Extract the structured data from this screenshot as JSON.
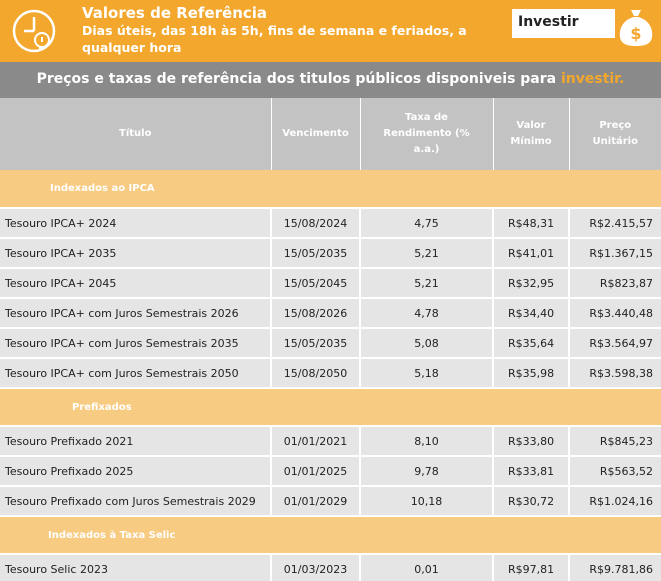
{
  "header": {
    "title": "Valores de Referência",
    "subtitle": "Dias úteis, das 18h às 5h, fins de semana e feriados, a qualquer hora",
    "invest_button": "Investir",
    "icons": [
      "clock-lightbulb-icon",
      "money-bag-icon"
    ],
    "colors": {
      "accent": "#f3a82d",
      "banner": "#8a8a8a",
      "header_cells": "#c3c3c3",
      "group_row": "#f8cb82"
    }
  },
  "banner": {
    "text": "Preços e taxas de referência dos titulos públicos disponiveis para ",
    "accent_text": "investir."
  },
  "table": {
    "columns": [
      "Título",
      "Vencimento",
      "Taxa de Rendimento (% a.a.)",
      "Valor Mínimo",
      "Preço Unitário"
    ],
    "groups": [
      {
        "label": "Indexados ao IPCA",
        "rows": [
          {
            "titulo": "Tesouro IPCA+ 2024",
            "vencimento": "15/08/2024",
            "taxa": "4,75",
            "minimo": "R$48,31",
            "preco": "R$2.415,57"
          },
          {
            "titulo": "Tesouro IPCA+ 2035",
            "vencimento": "15/05/2035",
            "taxa": "5,21",
            "minimo": "R$41,01",
            "preco": "R$1.367,15"
          },
          {
            "titulo": "Tesouro IPCA+ 2045",
            "vencimento": "15/05/2045",
            "taxa": "5,21",
            "minimo": "R$32,95",
            "preco": "R$823,87"
          },
          {
            "titulo": "Tesouro IPCA+ com Juros Semestrais 2026",
            "vencimento": "15/08/2026",
            "taxa": "4,78",
            "minimo": "R$34,40",
            "preco": "R$3.440,48"
          },
          {
            "titulo": "Tesouro IPCA+ com Juros Semestrais 2035",
            "vencimento": "15/05/2035",
            "taxa": "5,08",
            "minimo": "R$35,64",
            "preco": "R$3.564,97"
          },
          {
            "titulo": "Tesouro IPCA+ com Juros Semestrais 2050",
            "vencimento": "15/08/2050",
            "taxa": "5,18",
            "minimo": "R$35,98",
            "preco": "R$3.598,38"
          }
        ]
      },
      {
        "label": "Prefixados",
        "rows": [
          {
            "titulo": "Tesouro Prefixado 2021",
            "vencimento": "01/01/2021",
            "taxa": "8,10",
            "minimo": "R$33,80",
            "preco": "R$845,23"
          },
          {
            "titulo": "Tesouro Prefixado 2025",
            "vencimento": "01/01/2025",
            "taxa": "9,78",
            "minimo": "R$33,81",
            "preco": "R$563,52"
          },
          {
            "titulo": "Tesouro Prefixado com Juros Semestrais 2029",
            "vencimento": "01/01/2029",
            "taxa": "10,18",
            "minimo": "R$30,72",
            "preco": "R$1.024,16"
          }
        ]
      },
      {
        "label": "Indexados à Taxa Selic",
        "rows": [
          {
            "titulo": "Tesouro Selic 2023",
            "vencimento": "01/03/2023",
            "taxa": "0,01",
            "minimo": "R$97,81",
            "preco": "R$9.781,86"
          }
        ]
      }
    ]
  }
}
